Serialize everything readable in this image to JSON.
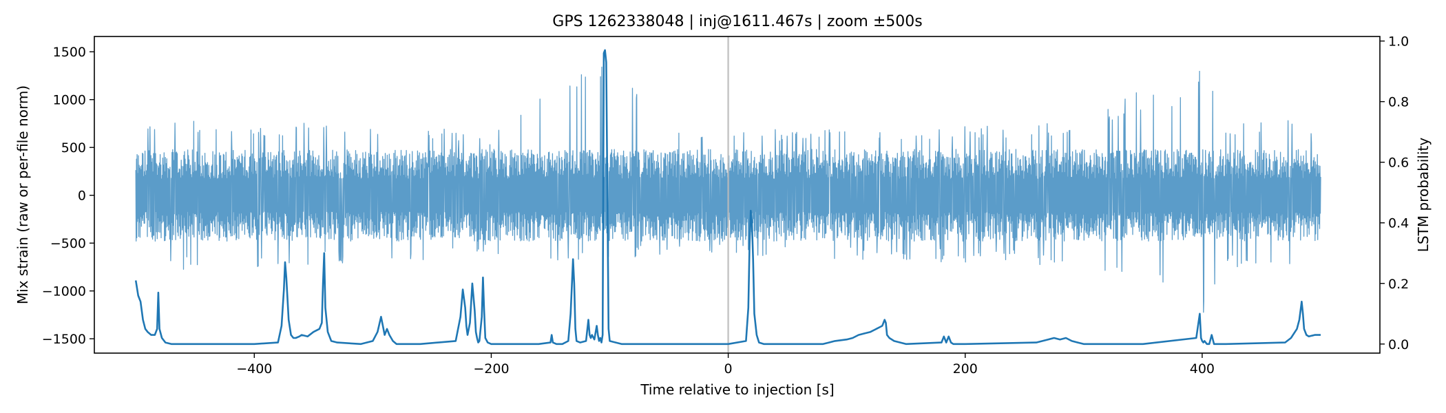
{
  "chart_data": {
    "type": "line",
    "title": "GPS 1262338048 | inj@1611.467s | zoom ±500s",
    "xlabel": "Time relative to injection [s]",
    "ylabel_left": "Mix strain (raw or per-file norm)",
    "ylabel_right": "LSTM probability",
    "xlim": [
      -535,
      550
    ],
    "ylim_left": [
      -1650,
      1660
    ],
    "ylim_right": [
      -0.03,
      1.015
    ],
    "x_ticks": [
      -400,
      -200,
      0,
      200,
      400
    ],
    "x_tick_labels": [
      "−400",
      "−200",
      "0",
      "200",
      "400"
    ],
    "y_left_ticks": [
      1500,
      1000,
      500,
      0,
      -500,
      -1000,
      -1500
    ],
    "y_left_tick_labels": [
      "1500",
      "1000",
      "500",
      "0",
      "−500",
      "−1000",
      "−1500"
    ],
    "y_right_ticks": [
      1.0,
      0.8,
      0.6,
      0.4,
      0.2,
      0.0
    ],
    "y_right_tick_labels": [
      "1.0",
      "0.8",
      "0.6",
      "0.4",
      "0.2",
      "0.0"
    ],
    "injection_marker_x": 0,
    "grid": false,
    "colors": {
      "strain": "#5b9cc9",
      "probability": "#1f77b4",
      "marker": "#bbbbbb"
    },
    "series": [
      {
        "key": "strain",
        "x_range": [
          -500,
          500
        ],
        "typical_amplitude": 480,
        "envelope": {
          "x": [
            -500,
            -480,
            -400,
            -300,
            -200,
            -107,
            -50,
            0,
            50,
            100,
            200,
            300,
            345,
            380,
            400,
            420,
            480,
            500
          ],
          "max": [
            700,
            820,
            760,
            800,
            650,
            1520,
            690,
            720,
            700,
            740,
            720,
            770,
            1090,
            1000,
            1520,
            760,
            820,
            600
          ],
          "min": [
            -700,
            -780,
            -760,
            -700,
            -640,
            -720,
            -610,
            -640,
            -650,
            -680,
            -700,
            -740,
            -1000,
            -880,
            -1380,
            -760,
            -750,
            -600
          ]
        }
      },
      {
        "key": "probability",
        "x": [
          -500,
          -498,
          -496,
          -494,
          -492,
          -490,
          -487,
          -484,
          -482,
          -481,
          -480,
          -478,
          -475,
          -470,
          -450,
          -400,
          -380,
          -377,
          -375,
          -374,
          -373,
          -371,
          -369,
          -367,
          -365,
          -362,
          -360,
          -355,
          -350,
          -345,
          -343,
          -342,
          -341,
          -340,
          -338,
          -335,
          -330,
          -310,
          -300,
          -296,
          -293,
          -291,
          -290,
          -288,
          -286,
          -283,
          -280,
          -260,
          -230,
          -226,
          -224,
          -222,
          -221,
          -220,
          -218,
          -216,
          -214,
          -213,
          -212,
          -211,
          -210,
          -208,
          -207,
          -206,
          -205,
          -203,
          -200,
          -160,
          -150,
          -149,
          -148,
          -145,
          -140,
          -135,
          -133,
          -131,
          -130,
          -129,
          -128,
          -125,
          -120,
          -118,
          -117,
          -116,
          -115,
          -113,
          -111,
          -110,
          -109,
          -108,
          -107,
          -106,
          -105,
          -104,
          -103,
          -102,
          -101,
          -100,
          -90,
          -50,
          0,
          15,
          17,
          18,
          19,
          20,
          21,
          22,
          24,
          26,
          30,
          80,
          85,
          90,
          100,
          105,
          110,
          115,
          120,
          125,
          130,
          131,
          132,
          133,
          134,
          136,
          140,
          150,
          180,
          182,
          184,
          186,
          188,
          190,
          192,
          200,
          260,
          270,
          275,
          280,
          285,
          290,
          295,
          300,
          350,
          395,
          398,
          399,
          400,
          401,
          402,
          404,
          406,
          408,
          410,
          420,
          470,
          475,
          480,
          482,
          483,
          484,
          485,
          486,
          488,
          490,
          495,
          500
        ],
        "y": [
          0.21,
          0.16,
          0.14,
          0.08,
          0.05,
          0.04,
          0.03,
          0.03,
          0.05,
          0.17,
          0.05,
          0.02,
          0.005,
          0.0,
          0.0,
          0.0,
          0.005,
          0.06,
          0.18,
          0.27,
          0.22,
          0.08,
          0.03,
          0.02,
          0.02,
          0.025,
          0.03,
          0.025,
          0.04,
          0.05,
          0.07,
          0.2,
          0.3,
          0.12,
          0.04,
          0.01,
          0.005,
          0.0,
          0.01,
          0.04,
          0.09,
          0.05,
          0.03,
          0.05,
          0.03,
          0.01,
          0.0,
          0.0,
          0.01,
          0.09,
          0.18,
          0.12,
          0.06,
          0.03,
          0.07,
          0.2,
          0.11,
          0.04,
          0.02,
          0.005,
          0.01,
          0.09,
          0.22,
          0.11,
          0.02,
          0.005,
          0.0,
          0.0,
          0.005,
          0.03,
          0.005,
          0.0,
          0.0,
          0.01,
          0.1,
          0.28,
          0.2,
          0.05,
          0.01,
          0.005,
          0.01,
          0.08,
          0.03,
          0.02,
          0.03,
          0.015,
          0.06,
          0.03,
          0.01,
          0.02,
          0.005,
          0.03,
          0.96,
          0.97,
          0.93,
          0.5,
          0.05,
          0.01,
          0.0,
          0.0,
          0.0,
          0.01,
          0.12,
          0.33,
          0.44,
          0.4,
          0.28,
          0.1,
          0.03,
          0.005,
          0.0,
          0.0,
          0.005,
          0.01,
          0.015,
          0.02,
          0.03,
          0.035,
          0.04,
          0.05,
          0.06,
          0.07,
          0.08,
          0.07,
          0.03,
          0.02,
          0.01,
          0.0,
          0.005,
          0.025,
          0.005,
          0.025,
          0.005,
          0.0,
          0.0,
          0.0,
          0.005,
          0.015,
          0.02,
          0.015,
          0.02,
          0.01,
          0.005,
          0.0,
          0.0,
          0.02,
          0.1,
          0.02,
          0.01,
          0.005,
          0.01,
          0.0,
          0.0,
          0.03,
          0.0,
          0.0,
          0.005,
          0.02,
          0.05,
          0.08,
          0.11,
          0.14,
          0.1,
          0.05,
          0.03,
          0.025,
          0.03,
          0.03
        ]
      }
    ]
  }
}
